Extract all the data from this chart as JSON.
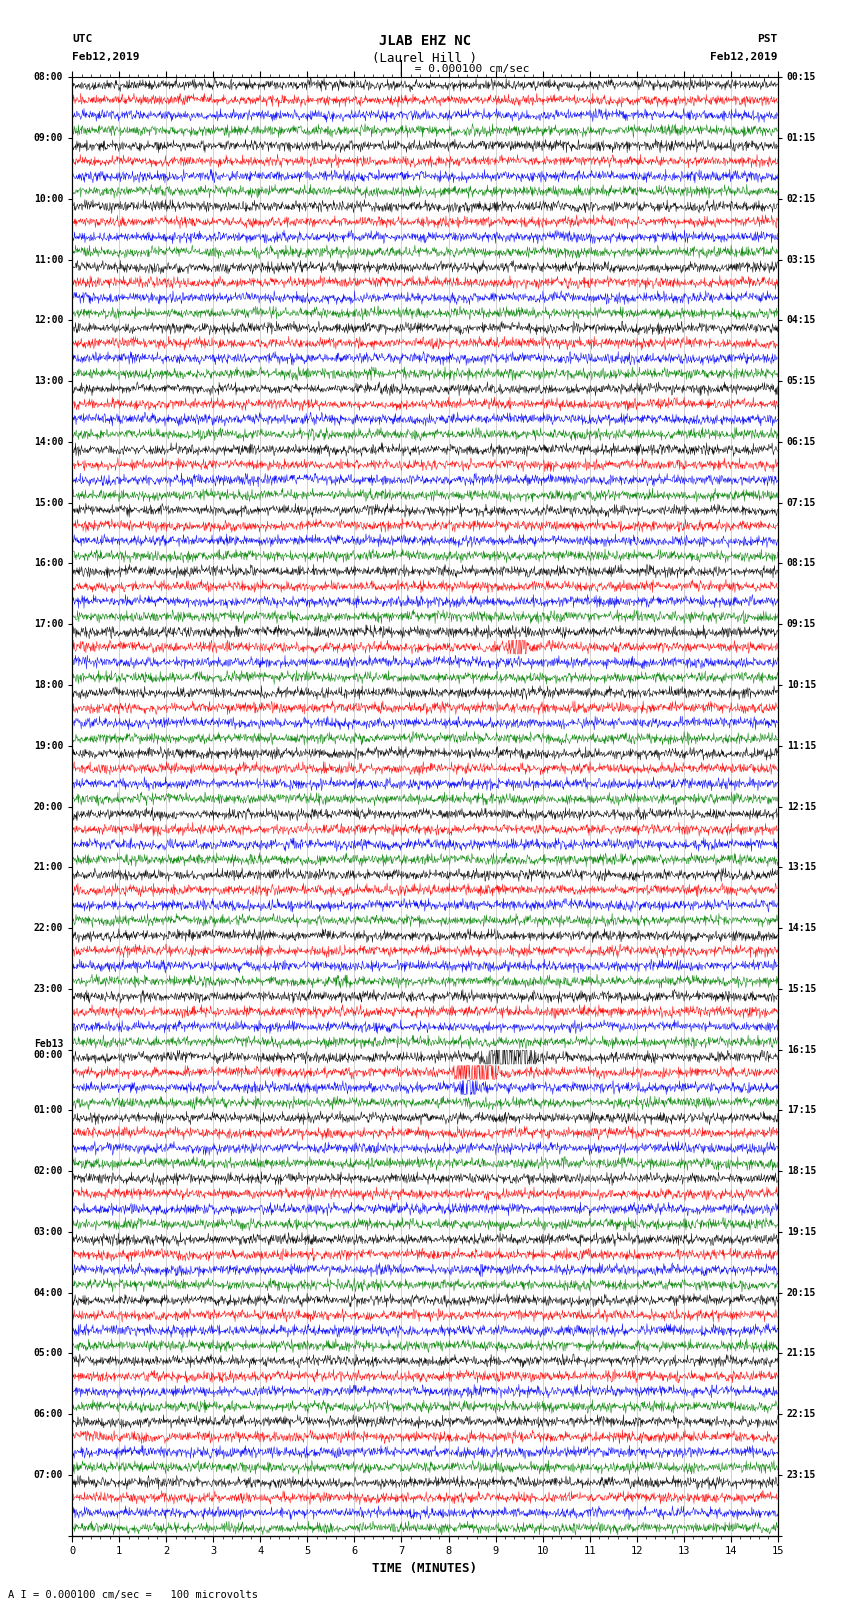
{
  "title_line1": "JLAB EHZ NC",
  "title_line2": "(Laurel Hill )",
  "scale_label": " = 0.000100 cm/sec",
  "utc_label": "UTC",
  "utc_date": "Feb12,2019",
  "pst_label": "PST",
  "pst_date": "Feb12,2019",
  "bottom_label": "TIME (MINUTES)",
  "bottom_note": "A I = 0.000100 cm/sec =   100 microvolts",
  "left_times_major": [
    "08:00",
    "09:00",
    "10:00",
    "11:00",
    "12:00",
    "13:00",
    "14:00",
    "15:00",
    "16:00",
    "17:00",
    "18:00",
    "19:00",
    "20:00",
    "21:00",
    "22:00",
    "23:00",
    "Feb13\n00:00",
    "01:00",
    "02:00",
    "03:00",
    "04:00",
    "05:00",
    "06:00",
    "07:00"
  ],
  "right_times_major": [
    "00:15",
    "01:15",
    "02:15",
    "03:15",
    "04:15",
    "05:15",
    "06:15",
    "07:15",
    "08:15",
    "09:15",
    "10:15",
    "11:15",
    "12:15",
    "13:15",
    "14:15",
    "15:15",
    "16:15",
    "17:15",
    "18:15",
    "19:15",
    "20:15",
    "21:15",
    "22:15",
    "23:15"
  ],
  "colors": [
    "black",
    "red",
    "blue",
    "green"
  ],
  "n_hours": 24,
  "traces_per_hour": 4,
  "n_minutes": 15,
  "samples_per_minute": 100,
  "figsize": [
    8.5,
    16.13
  ],
  "dpi": 100,
  "bg_color": "white"
}
